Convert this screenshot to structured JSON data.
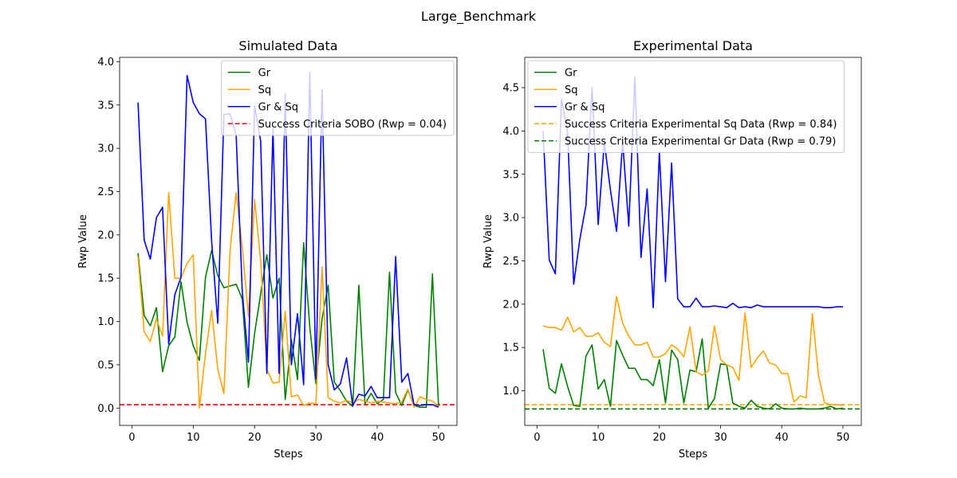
{
  "figure": {
    "suptitle": "Large_Benchmark"
  },
  "chart_data": [
    {
      "type": "line",
      "title": "Simulated Data",
      "xlabel": "Steps",
      "ylabel": "Rwp Value",
      "xlim": [
        -2,
        53
      ],
      "ylim": [
        -0.2,
        4.05
      ],
      "xticks": [
        0,
        10,
        20,
        30,
        40,
        50
      ],
      "yticks": [
        0.0,
        0.5,
        1.0,
        1.5,
        2.0,
        2.5,
        3.0,
        3.5,
        4.0
      ],
      "ytick_decimals": 1,
      "grid": false,
      "legend_placement": "top-right",
      "x": [
        1,
        2,
        3,
        4,
        5,
        6,
        7,
        8,
        9,
        10,
        11,
        12,
        13,
        14,
        15,
        16,
        17,
        18,
        19,
        20,
        21,
        22,
        23,
        24,
        25,
        26,
        27,
        28,
        29,
        30,
        31,
        32,
        33,
        34,
        35,
        36,
        37,
        38,
        39,
        40,
        41,
        42,
        43,
        44,
        45,
        46,
        47,
        48,
        49,
        50
      ],
      "series": [
        {
          "name": "Gr",
          "color": "#008000",
          "values": [
            1.79,
            1.07,
            0.95,
            1.16,
            0.42,
            0.72,
            0.82,
            1.46,
            0.99,
            0.72,
            0.55,
            1.51,
            1.82,
            1.53,
            1.39,
            1.41,
            1.43,
            1.26,
            0.24,
            0.86,
            1.32,
            1.77,
            1.27,
            1.5,
            0.1,
            0.79,
            0.33,
            1.91,
            0.94,
            0.28,
            1.03,
            1.42,
            0.3,
            0.2,
            0.08,
            0.02,
            1.42,
            0.05,
            0.17,
            0.05,
            0.1,
            1.57,
            0.18,
            0.03,
            0.21,
            0.03,
            0.01,
            0.01,
            1.55,
            0.02
          ]
        },
        {
          "name": "Sq",
          "color": "#ffa500",
          "values": [
            1.75,
            0.88,
            0.77,
            1.03,
            0.83,
            2.49,
            1.5,
            1.5,
            1.67,
            1.77,
            0.0,
            0.63,
            1.13,
            0.45,
            0.17,
            1.82,
            2.49,
            1.85,
            1.06,
            2.41,
            1.7,
            0.45,
            0.29,
            0.3,
            1.12,
            0.13,
            0.15,
            0.03,
            0.06,
            0.05,
            1.63,
            0.12,
            0.08,
            0.06,
            0.09,
            0.06,
            0.1,
            0.08,
            0.06,
            0.08,
            0.07,
            0.06,
            0.05,
            0.07,
            0.22,
            0.01,
            0.13,
            0.1,
            0.08,
            0.02
          ]
        },
        {
          "name": "Gr & Sq",
          "color": "#0000ff",
          "values": [
            3.53,
            1.94,
            1.72,
            2.2,
            2.32,
            0.74,
            1.31,
            1.51,
            3.84,
            3.53,
            3.4,
            3.34,
            1.93,
            0.98,
            3.39,
            3.4,
            3.15,
            1.34,
            0.53,
            3.49,
            3.08,
            0.4,
            3.23,
            0.4,
            3.63,
            0.5,
            1.09,
            0.27,
            3.88,
            0.34,
            3.68,
            0.5,
            0.21,
            0.28,
            0.58,
            0.03,
            0.16,
            0.14,
            0.25,
            0.12,
            0.12,
            0.12,
            1.75,
            0.3,
            0.4,
            0.04,
            0.03,
            0.04,
            0.04,
            0.01
          ]
        }
      ],
      "hlines": [
        {
          "name": "Success Criteria SOBO (Rwp = 0.04)",
          "value": 0.04,
          "color": "#ff0000",
          "style": "dashed"
        }
      ]
    },
    {
      "type": "line",
      "title": "Experimental Data",
      "xlabel": "Steps",
      "ylabel": "Rwp Value",
      "xlim": [
        -2,
        53
      ],
      "ylim": [
        0.6,
        4.85
      ],
      "xticks": [
        0,
        10,
        20,
        30,
        40,
        50
      ],
      "yticks": [
        1.0,
        1.5,
        2.0,
        2.5,
        3.0,
        3.5,
        4.0,
        4.5
      ],
      "ytick_decimals": 1,
      "grid": false,
      "legend_placement": "top-left",
      "x": [
        1,
        2,
        3,
        4,
        5,
        6,
        7,
        8,
        9,
        10,
        11,
        12,
        13,
        14,
        15,
        16,
        17,
        18,
        19,
        20,
        21,
        22,
        23,
        24,
        25,
        26,
        27,
        28,
        29,
        30,
        31,
        32,
        33,
        34,
        35,
        36,
        37,
        38,
        39,
        40,
        41,
        42,
        43,
        44,
        45,
        46,
        47,
        48,
        49,
        50
      ],
      "series": [
        {
          "name": "Gr",
          "color": "#008000",
          "values": [
            1.48,
            1.03,
            0.97,
            1.31,
            1.05,
            0.83,
            0.82,
            1.4,
            1.53,
            1.02,
            1.13,
            0.82,
            1.58,
            1.41,
            1.26,
            1.26,
            1.13,
            1.13,
            1.06,
            1.36,
            0.86,
            1.47,
            1.36,
            0.86,
            1.24,
            1.22,
            1.6,
            0.8,
            0.91,
            1.31,
            1.3,
            0.86,
            0.82,
            0.8,
            0.89,
            0.82,
            0.8,
            0.79,
            0.85,
            0.8,
            0.79,
            0.79,
            0.8,
            0.79,
            0.79,
            0.79,
            0.8,
            0.82,
            0.79,
            0.8
          ]
        },
        {
          "name": "Sq",
          "color": "#ffa500",
          "values": [
            1.75,
            1.73,
            1.73,
            1.7,
            1.85,
            1.68,
            1.73,
            1.63,
            1.63,
            1.67,
            1.56,
            1.51,
            2.09,
            1.78,
            1.63,
            1.53,
            1.53,
            1.56,
            1.39,
            1.39,
            1.43,
            1.53,
            1.48,
            1.39,
            1.74,
            1.22,
            1.18,
            1.23,
            1.75,
            1.36,
            1.3,
            1.27,
            1.12,
            1.9,
            1.27,
            1.38,
            1.46,
            1.32,
            1.3,
            1.2,
            1.2,
            0.87,
            0.94,
            0.92,
            1.89,
            1.18,
            0.86,
            0.84,
            0.84,
            0.83
          ]
        },
        {
          "name": "Gr & Sq",
          "color": "#0000ff",
          "values": [
            4.0,
            2.51,
            2.35,
            4.37,
            3.99,
            2.23,
            2.75,
            3.14,
            4.5,
            2.92,
            3.87,
            3.32,
            2.84,
            3.88,
            2.9,
            4.62,
            2.54,
            3.33,
            1.96,
            3.76,
            2.26,
            3.63,
            2.06,
            1.97,
            1.97,
            2.07,
            1.97,
            1.97,
            1.98,
            1.97,
            1.96,
            2.01,
            1.96,
            1.97,
            1.96,
            1.99,
            1.97,
            1.97,
            1.97,
            1.97,
            1.97,
            1.97,
            1.97,
            1.97,
            1.97,
            1.97,
            1.96,
            1.96,
            1.97,
            1.97
          ]
        }
      ],
      "hlines": [
        {
          "name": "Success Criteria Experimental Sq Data (Rwp = 0.84)",
          "value": 0.84,
          "color": "#ffa500",
          "style": "dashed"
        },
        {
          "name": "Success Criteria Experimental Gr Data (Rwp = 0.79)",
          "value": 0.79,
          "color": "#008000",
          "style": "dashed"
        }
      ]
    }
  ]
}
